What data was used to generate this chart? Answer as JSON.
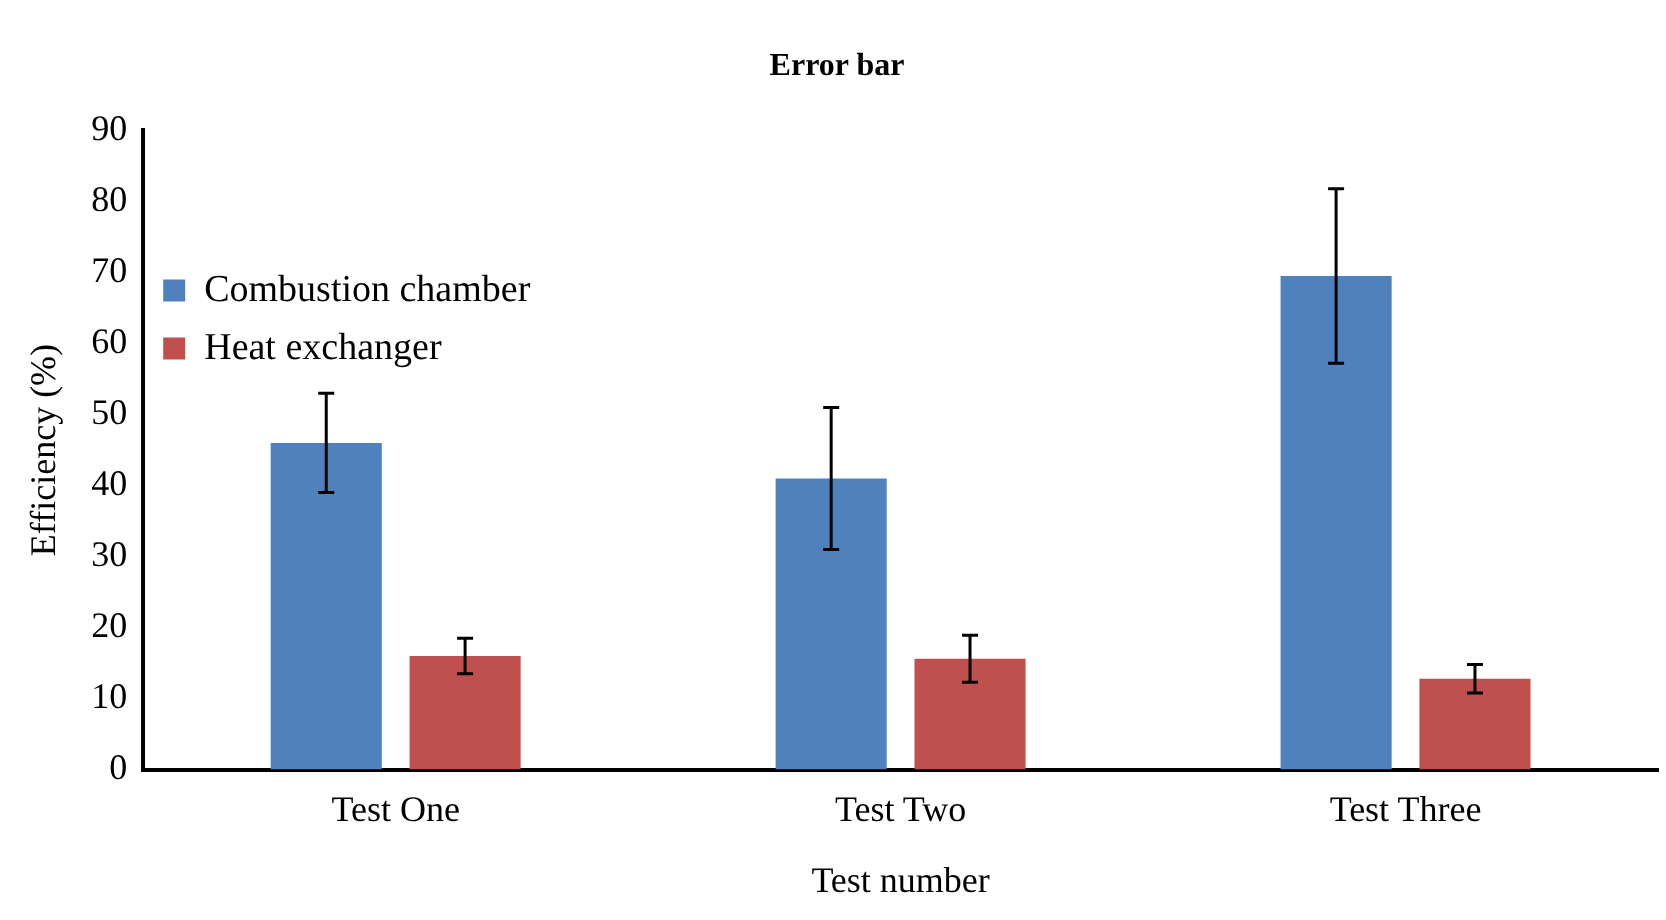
{
  "chart_data": {
    "type": "bar",
    "title": "Error bar",
    "xlabel": "Test number",
    "ylabel": "Efficiency (%)",
    "categories": [
      "Test One",
      "Test Two",
      "Test Three"
    ],
    "series": [
      {
        "name": "Combustion chamber",
        "color": "#4f81bd",
        "values": [
          46,
          41,
          69.5
        ],
        "errors": [
          7,
          10,
          12.3
        ]
      },
      {
        "name": "Heat exchanger",
        "color": "#c0504d",
        "values": [
          16,
          15.6,
          12.8
        ],
        "errors": [
          2.5,
          3.3,
          2
        ]
      }
    ],
    "ylim": [
      0,
      90
    ],
    "yticks": [
      0,
      10,
      20,
      30,
      40,
      50,
      60,
      70,
      80,
      90
    ],
    "grid": false,
    "legend": "top"
  }
}
